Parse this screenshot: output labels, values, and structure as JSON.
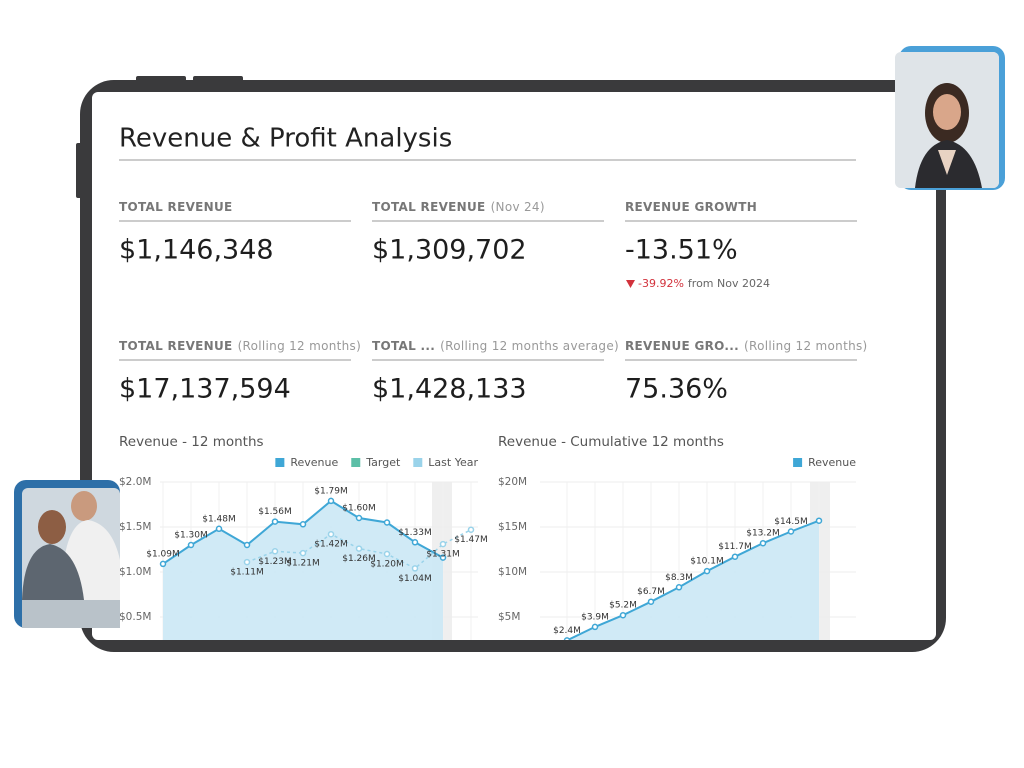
{
  "header": {
    "title": "Revenue & Profit Analysis"
  },
  "kpis": [
    {
      "label": "TOTAL REVENUE",
      "value": "$1,146,348"
    },
    {
      "label": "TOTAL REVENUE",
      "qualifier": "(Nov 24)",
      "value": "$1,309,702"
    },
    {
      "label": "REVENUE GROWTH",
      "value": "-13.51%",
      "change": "-39.92%",
      "change_note": "from Nov 2024"
    },
    {
      "label": "TOTAL REVENUE",
      "qualifier": "(Rolling 12 months)",
      "value": "$17,137,594"
    },
    {
      "label": "TOTAL ...",
      "qualifier": "(Rolling 12 months average)",
      "value": "$1,428,133"
    },
    {
      "label": "REVENUE GRO...",
      "qualifier": "(Rolling 12 months)",
      "value": "75.36%"
    }
  ],
  "chart_data": [
    {
      "type": "line",
      "title": "Revenue - 12 months",
      "categories": [
        null,
        null,
        null,
        null,
        null,
        null,
        null,
        null,
        null,
        null,
        null,
        null
      ],
      "ylim": [
        0,
        2000000
      ],
      "yticks": [
        {
          "value": 2000000,
          "label": "$2.0M"
        },
        {
          "value": 1500000,
          "label": "$1.5M"
        },
        {
          "value": 1000000,
          "label": "$1.0M"
        },
        {
          "value": 500000,
          "label": "$0.5M"
        }
      ],
      "grid": true,
      "series": [
        {
          "name": "Revenue",
          "color": "#3fa7d6",
          "area": true,
          "values": [
            1090000,
            1300000,
            1480000,
            1300000,
            1560000,
            1530000,
            1790000,
            1600000,
            1550000,
            1330000,
            1160000,
            null
          ],
          "value_labels": [
            "$1.09M",
            "$1.30M",
            "$1.48M",
            null,
            "$1.56M",
            null,
            "$1.79M",
            "$1.60M",
            null,
            "$1.33M",
            null,
            null
          ]
        },
        {
          "name": "Target",
          "color": "#5cbfa7",
          "values": [
            null,
            null,
            null,
            null,
            null,
            null,
            null,
            null,
            null,
            null,
            null,
            null
          ]
        },
        {
          "name": "Last Year",
          "color": "#9ad3ea",
          "dashed": true,
          "values": [
            null,
            null,
            null,
            1110000,
            1230000,
            1210000,
            1420000,
            1260000,
            1200000,
            1040000,
            1310000,
            1470000
          ],
          "value_labels": [
            null,
            null,
            null,
            "$1.11M",
            "$1.23M",
            "$1.21M",
            "$1.42M",
            "$1.26M",
            "$1.20M",
            "$1.04M",
            "$1.31M",
            "$1.47M"
          ]
        }
      ]
    },
    {
      "type": "line",
      "title": "Revenue - Cumulative 12 months",
      "categories": [
        null,
        null,
        null,
        null,
        null,
        null,
        null,
        null,
        null,
        null
      ],
      "ylim": [
        0,
        20000000
      ],
      "yticks": [
        {
          "value": 20000000,
          "label": "$20M"
        },
        {
          "value": 15000000,
          "label": "$15M"
        },
        {
          "value": 10000000,
          "label": "$10M"
        },
        {
          "value": 5000000,
          "label": "$5M"
        }
      ],
      "grid": true,
      "series": [
        {
          "name": "Revenue",
          "color": "#3fa7d6",
          "area": true,
          "values": [
            2400000,
            3900000,
            5200000,
            6700000,
            8300000,
            10100000,
            11700000,
            13200000,
            14500000,
            15700000
          ],
          "value_labels": [
            "$2.4M",
            "$3.9M",
            "$5.2M",
            "$6.7M",
            "$8.3M",
            "$10.1M",
            "$11.7M",
            "$13.2M",
            "$14.5M",
            null
          ]
        }
      ]
    }
  ]
}
